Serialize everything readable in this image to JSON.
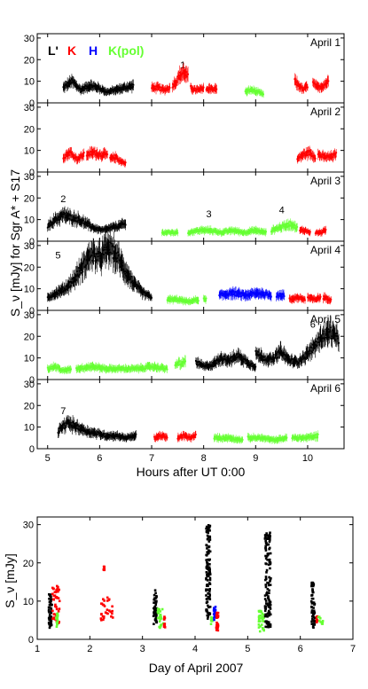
{
  "chart_data": [
    {
      "type": "scatter",
      "xlabel": "Hours after UT 0:00",
      "ylabel": "S_ν [mJy] for Sgr A* + S17",
      "xlim": [
        4.8,
        10.7
      ],
      "ylim": [
        0,
        30
      ],
      "xticks": [
        5,
        6,
        7,
        8,
        9,
        10
      ],
      "yticks": [
        0,
        10,
        20,
        30
      ],
      "grid": false,
      "legend_position": "top-left",
      "series_legend": [
        {
          "name": "L'",
          "color": "#000000"
        },
        {
          "name": "K",
          "color": "#ff0000"
        },
        {
          "name": "H",
          "color": "#0000ff"
        },
        {
          "name": "K(pol)",
          "color": "#66ff33"
        }
      ],
      "panels": [
        {
          "label": "April 1",
          "annotations": [
            {
              "text": "1",
              "x": 7.6,
              "y": 16
            }
          ],
          "segments": [
            {
              "band": "L'",
              "x_start": 5.3,
              "x_end": 6.65,
              "y": [
                7,
                10,
                6,
                8,
                7,
                5,
                6,
                7,
                8
              ]
            },
            {
              "band": "K",
              "x_start": 7.0,
              "x_end": 7.35,
              "y": [
                7,
                7,
                6,
                7
              ]
            },
            {
              "band": "K",
              "x_start": 7.4,
              "x_end": 7.7,
              "y": [
                8,
                10,
                13,
                14,
                12
              ]
            },
            {
              "band": "K",
              "x_start": 7.75,
              "x_end": 8.0,
              "y": [
                7,
                6,
                6,
                7
              ]
            },
            {
              "band": "K",
              "x_start": 8.05,
              "x_end": 8.25,
              "y": [
                6,
                7,
                6,
                7
              ]
            },
            {
              "band": "K(pol)",
              "x_start": 8.8,
              "x_end": 9.15,
              "y": [
                5,
                6,
                5,
                4
              ]
            },
            {
              "band": "K",
              "x_start": 9.75,
              "x_end": 10.0,
              "y": [
                10,
                8,
                6,
                8
              ]
            },
            {
              "band": "K",
              "x_start": 10.1,
              "x_end": 10.4,
              "y": [
                9,
                7,
                8,
                10
              ]
            }
          ]
        },
        {
          "label": "April 2",
          "annotations": [],
          "segments": [
            {
              "band": "K",
              "x_start": 5.3,
              "x_end": 5.7,
              "y": [
                7,
                9,
                6,
                8
              ]
            },
            {
              "band": "K",
              "x_start": 5.75,
              "x_end": 6.15,
              "y": [
                8,
                9,
                8,
                8
              ]
            },
            {
              "band": "K",
              "x_start": 6.2,
              "x_end": 6.5,
              "y": [
                6,
                7,
                5,
                4
              ]
            },
            {
              "band": "K",
              "x_start": 9.8,
              "x_end": 10.15,
              "y": [
                6,
                8,
                9,
                7
              ]
            },
            {
              "band": "K",
              "x_start": 10.2,
              "x_end": 10.55,
              "y": [
                8,
                7,
                7,
                8
              ]
            }
          ]
        },
        {
          "label": "April 3",
          "annotations": [
            {
              "text": "2",
              "x": 5.3,
              "y": 18
            },
            {
              "text": "3",
              "x": 8.1,
              "y": 11
            },
            {
              "text": "4",
              "x": 9.5,
              "y": 13
            }
          ],
          "segments": [
            {
              "band": "L'",
              "x_start": 5.0,
              "x_end": 6.5,
              "y": [
                7,
                10,
                12,
                11,
                10,
                8,
                6,
                5,
                6,
                7,
                8
              ]
            },
            {
              "band": "K(pol)",
              "x_start": 7.2,
              "x_end": 7.5,
              "y": [
                4,
                4,
                4
              ]
            },
            {
              "band": "K(pol)",
              "x_start": 7.7,
              "x_end": 9.2,
              "y": [
                4,
                5,
                5,
                4,
                5,
                4,
                5,
                4
              ]
            },
            {
              "band": "K(pol)",
              "x_start": 9.3,
              "x_end": 9.8,
              "y": [
                5,
                6,
                7,
                8,
                6
              ]
            },
            {
              "band": "K",
              "x_start": 9.85,
              "x_end": 10.05,
              "y": [
                5,
                5,
                4
              ]
            },
            {
              "band": "K",
              "x_start": 10.15,
              "x_end": 10.35,
              "y": [
                4,
                4,
                5
              ]
            }
          ]
        },
        {
          "label": "April 4",
          "annotations": [
            {
              "text": "5",
              "x": 5.2,
              "y": 24
            }
          ],
          "segments": [
            {
              "band": "L'",
              "x_start": 5.0,
              "x_end": 7.0,
              "y": [
                6,
                8,
                10,
                14,
                20,
                26,
                24,
                29,
                25,
                18,
                12,
                8,
                6
              ]
            },
            {
              "band": "K(pol)",
              "x_start": 7.3,
              "x_end": 7.9,
              "y": [
                5,
                5,
                4,
                5
              ]
            },
            {
              "band": "K(pol)",
              "x_start": 8.0,
              "x_end": 8.05,
              "y": [
                5
              ]
            },
            {
              "band": "H",
              "x_start": 8.3,
              "x_end": 9.3,
              "y": [
                7,
                8,
                7,
                8,
                7
              ]
            },
            {
              "band": "H",
              "x_start": 9.4,
              "x_end": 9.55,
              "y": [
                7,
                7
              ]
            },
            {
              "band": "K",
              "x_start": 9.65,
              "x_end": 9.95,
              "y": [
                5,
                6,
                5
              ]
            },
            {
              "band": "K",
              "x_start": 10.0,
              "x_end": 10.25,
              "y": [
                6,
                5,
                6
              ]
            },
            {
              "band": "K",
              "x_start": 10.3,
              "x_end": 10.45,
              "y": [
                6,
                5
              ]
            }
          ]
        },
        {
          "label": "April 5",
          "annotations": [
            {
              "text": "6",
              "x": 10.1,
              "y": 24
            }
          ],
          "segments": [
            {
              "band": "K(pol)",
              "x_start": 5.0,
              "x_end": 5.45,
              "y": [
                5,
                6,
                4,
                5
              ]
            },
            {
              "band": "K(pol)",
              "x_start": 5.55,
              "x_end": 7.3,
              "y": [
                5,
                6,
                5,
                5,
                5,
                6,
                5
              ]
            },
            {
              "band": "K(pol)",
              "x_start": 7.45,
              "x_end": 7.65,
              "y": [
                6,
                8,
                7,
                9
              ]
            },
            {
              "band": "L'",
              "x_start": 7.85,
              "x_end": 9.0,
              "y": [
                8,
                6,
                7,
                10,
                9,
                11,
                8,
                6
              ]
            },
            {
              "band": "L'",
              "x_start": 9.0,
              "x_end": 10.6,
              "y": [
                12,
                10,
                9,
                13,
                9,
                8,
                11,
                15,
                20,
                22,
                18
              ]
            }
          ]
        },
        {
          "label": "April 6",
          "annotations": [
            {
              "text": "7",
              "x": 5.3,
              "y": 16
            }
          ],
          "segments": [
            {
              "band": "L'",
              "x_start": 5.2,
              "x_end": 6.7,
              "y": [
                8,
                12,
                10,
                8,
                7,
                6,
                6,
                5,
                6
              ]
            },
            {
              "band": "K",
              "x_start": 7.05,
              "x_end": 7.3,
              "y": [
                5,
                6,
                5
              ]
            },
            {
              "band": "K",
              "x_start": 7.5,
              "x_end": 7.85,
              "y": [
                5,
                6,
                5,
                6
              ]
            },
            {
              "band": "K(pol)",
              "x_start": 8.2,
              "x_end": 8.75,
              "y": [
                5,
                5,
                4
              ]
            },
            {
              "band": "K(pol)",
              "x_start": 8.85,
              "x_end": 9.6,
              "y": [
                5,
                5,
                4,
                5
              ]
            },
            {
              "band": "K(pol)",
              "x_start": 9.7,
              "x_end": 10.2,
              "y": [
                5,
                5,
                6
              ]
            }
          ]
        }
      ]
    },
    {
      "type": "scatter",
      "xlabel": "Day of April 2007",
      "ylabel": "S_ν [mJy]",
      "xlim": [
        1,
        7
      ],
      "ylim": [
        0,
        32
      ],
      "xticks": [
        1,
        2,
        3,
        4,
        5,
        6,
        7
      ],
      "yticks": [
        0,
        10,
        20,
        30
      ],
      "grid": false,
      "groups": [
        {
          "band": "L'",
          "x_start": 1.22,
          "x_end": 1.28,
          "y_min": 3,
          "y_max": 12
        },
        {
          "band": "K",
          "x_start": 1.29,
          "x_end": 1.43,
          "y_min": 4,
          "y_max": 14
        },
        {
          "band": "K(pol)",
          "x_start": 1.36,
          "x_end": 1.39,
          "y_min": 3,
          "y_max": 7
        },
        {
          "band": "K",
          "x_start": 2.21,
          "x_end": 2.44,
          "y_min": 5,
          "y_max": 11
        },
        {
          "band": "K",
          "x_start": 2.26,
          "x_end": 2.28,
          "y_min": 18,
          "y_max": 19
        },
        {
          "band": "L'",
          "x_start": 3.21,
          "x_end": 3.27,
          "y_min": 4,
          "y_max": 13
        },
        {
          "band": "K(pol)",
          "x_start": 3.29,
          "x_end": 3.4,
          "y_min": 3,
          "y_max": 8
        },
        {
          "band": "K",
          "x_start": 3.41,
          "x_end": 3.43,
          "y_min": 3,
          "y_max": 6
        },
        {
          "band": "L'",
          "x_start": 4.21,
          "x_end": 4.29,
          "y_min": 5,
          "y_max": 30
        },
        {
          "band": "K(pol)",
          "x_start": 4.3,
          "x_end": 4.33,
          "y_min": 4,
          "y_max": 6
        },
        {
          "band": "H",
          "x_start": 4.35,
          "x_end": 4.39,
          "y_min": 5,
          "y_max": 9
        },
        {
          "band": "K",
          "x_start": 4.4,
          "x_end": 4.44,
          "y_min": 2,
          "y_max": 7
        },
        {
          "band": "K(pol)",
          "x_start": 5.21,
          "x_end": 5.31,
          "y_min": 2,
          "y_max": 8
        },
        {
          "band": "L'",
          "x_start": 5.33,
          "x_end": 5.44,
          "y_min": 3,
          "y_max": 28
        },
        {
          "band": "L'",
          "x_start": 6.21,
          "x_end": 6.28,
          "y_min": 3,
          "y_max": 15
        },
        {
          "band": "K",
          "x_start": 6.3,
          "x_end": 6.33,
          "y_min": 4,
          "y_max": 6
        },
        {
          "band": "K(pol)",
          "x_start": 6.34,
          "x_end": 6.43,
          "y_min": 4,
          "y_max": 6
        }
      ]
    }
  ],
  "colors": {
    "L'": "#000000",
    "K": "#ff0000",
    "H": "#0000ff",
    "K(pol)": "#66ff33"
  }
}
